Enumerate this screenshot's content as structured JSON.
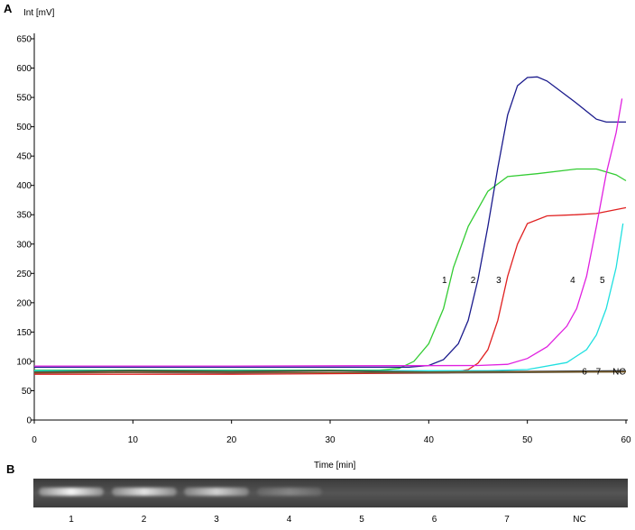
{
  "panel_a_label": "A",
  "panel_b_label": "B",
  "chart_data": {
    "type": "line",
    "title": "",
    "xlabel": "Time [min]",
    "ylabel": "Int [mV]",
    "xlim": [
      0,
      60
    ],
    "ylim": [
      0,
      650
    ],
    "xticks": [
      0,
      10,
      20,
      30,
      40,
      50,
      60
    ],
    "yticks": [
      0,
      50,
      100,
      150,
      200,
      250,
      300,
      350,
      400,
      450,
      500,
      550,
      600,
      650
    ],
    "grid": false,
    "series": [
      {
        "name": "1",
        "color": "#33cc33",
        "points": [
          [
            0,
            85
          ],
          [
            20,
            85
          ],
          [
            35,
            85
          ],
          [
            37,
            88
          ],
          [
            38.5,
            100
          ],
          [
            40,
            130
          ],
          [
            41.5,
            190
          ],
          [
            42.5,
            260
          ],
          [
            44,
            330
          ],
          [
            46,
            390
          ],
          [
            48,
            415
          ],
          [
            51,
            420
          ],
          [
            55,
            428
          ],
          [
            57,
            428
          ],
          [
            59,
            418
          ],
          [
            60,
            408
          ]
        ]
      },
      {
        "name": "2",
        "color": "#1a1a8c",
        "points": [
          [
            0,
            90
          ],
          [
            20,
            90
          ],
          [
            38,
            90
          ],
          [
            40,
            93
          ],
          [
            41.5,
            103
          ],
          [
            43,
            130
          ],
          [
            44,
            170
          ],
          [
            45,
            240
          ],
          [
            46,
            330
          ],
          [
            47,
            430
          ],
          [
            48,
            520
          ],
          [
            49,
            570
          ],
          [
            50,
            584
          ],
          [
            51,
            585
          ],
          [
            52,
            578
          ],
          [
            55,
            540
          ],
          [
            57,
            513
          ],
          [
            58,
            508
          ],
          [
            60,
            508
          ]
        ]
      },
      {
        "name": "3",
        "color": "#e02020",
        "points": [
          [
            0,
            78
          ],
          [
            20,
            78
          ],
          [
            42,
            80
          ],
          [
            44,
            86
          ],
          [
            45,
            97
          ],
          [
            46,
            120
          ],
          [
            47,
            170
          ],
          [
            48,
            245
          ],
          [
            49,
            300
          ],
          [
            50,
            335
          ],
          [
            52,
            348
          ],
          [
            55,
            350
          ],
          [
            57,
            352
          ],
          [
            60,
            362
          ]
        ]
      },
      {
        "name": "4",
        "color": "#e020e0",
        "points": [
          [
            0,
            92
          ],
          [
            20,
            92
          ],
          [
            45,
            93
          ],
          [
            48,
            95
          ],
          [
            50,
            105
          ],
          [
            52,
            125
          ],
          [
            54,
            160
          ],
          [
            55,
            190
          ],
          [
            56,
            245
          ],
          [
            57,
            330
          ],
          [
            58,
            420
          ],
          [
            59,
            490
          ],
          [
            59.6,
            548
          ]
        ]
      },
      {
        "name": "5",
        "color": "#20e0e0",
        "points": [
          [
            0,
            84
          ],
          [
            20,
            84
          ],
          [
            46,
            84
          ],
          [
            50,
            86
          ],
          [
            54,
            98
          ],
          [
            56,
            120
          ],
          [
            57,
            145
          ],
          [
            58,
            190
          ],
          [
            59,
            260
          ],
          [
            59.7,
            335
          ]
        ]
      },
      {
        "name": "6",
        "color": "#404040",
        "points": [
          [
            0,
            82
          ],
          [
            10,
            84
          ],
          [
            20,
            83
          ],
          [
            30,
            84
          ],
          [
            40,
            82
          ],
          [
            50,
            83
          ],
          [
            60,
            84
          ]
        ]
      },
      {
        "name": "7",
        "color": "#606060",
        "points": [
          [
            0,
            80
          ],
          [
            10,
            81
          ],
          [
            20,
            80
          ],
          [
            30,
            81
          ],
          [
            40,
            80
          ],
          [
            50,
            81
          ],
          [
            60,
            82
          ]
        ]
      },
      {
        "name": "NC",
        "color": "#7a5a20",
        "points": [
          [
            0,
            81
          ],
          [
            15,
            82
          ],
          [
            30,
            81
          ],
          [
            45,
            82
          ],
          [
            60,
            82
          ]
        ]
      }
    ],
    "annotations": [
      {
        "text": "1",
        "x": 41.6,
        "y": 240
      },
      {
        "text": "2",
        "x": 44.5,
        "y": 240
      },
      {
        "text": "3",
        "x": 47.1,
        "y": 240
      },
      {
        "text": "4",
        "x": 54.6,
        "y": 240
      },
      {
        "text": "5",
        "x": 57.6,
        "y": 240
      },
      {
        "text": "6",
        "x": 55.8,
        "y": 84
      },
      {
        "text": "7",
        "x": 57.2,
        "y": 84
      },
      {
        "text": "NC",
        "x": 59.3,
        "y": 84
      }
    ]
  },
  "gel": {
    "lanes": [
      {
        "label": "1",
        "intensity": 0.95
      },
      {
        "label": "2",
        "intensity": 0.85
      },
      {
        "label": "3",
        "intensity": 0.75
      },
      {
        "label": "4",
        "intensity": 0.3
      },
      {
        "label": "5",
        "intensity": 0
      },
      {
        "label": "6",
        "intensity": 0
      },
      {
        "label": "7",
        "intensity": 0
      },
      {
        "label": "NC",
        "intensity": 0
      }
    ]
  }
}
